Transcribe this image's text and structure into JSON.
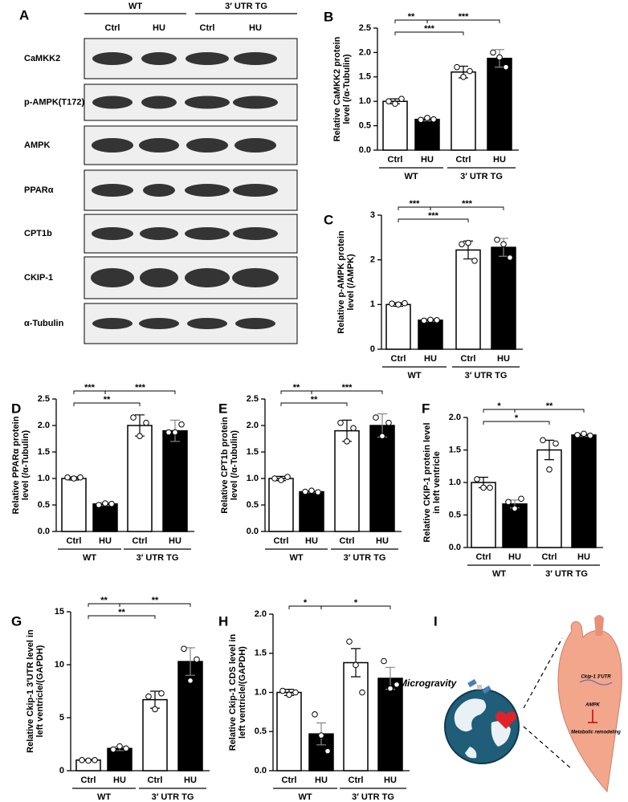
{
  "blot": {
    "label": "A",
    "groups": [
      "WT",
      "3′ UTR TG"
    ],
    "lanes": [
      "Ctrl",
      "HU",
      "Ctrl",
      "HU"
    ],
    "rows": [
      "CaMKK2",
      "p-AMPK(T172)",
      "AMPK",
      "PPARα",
      "CPT1b",
      "CKIP-1",
      "α-Tubulin"
    ]
  },
  "chart_data": [
    {
      "type": "bar",
      "label": "B",
      "ylabel": [
        "Relative CaMKK2 protein",
        "level (/α-Tubulin)"
      ],
      "categories": [
        "Ctrl",
        "HU",
        "Ctrl",
        "HU"
      ],
      "groups": [
        "WT",
        "3′ UTR TG"
      ],
      "values": [
        1.0,
        0.63,
        1.6,
        1.88
      ],
      "errors": [
        0.05,
        0.03,
        0.12,
        0.18
      ],
      "points": [
        [
          1.0,
          0.95,
          1.05
        ],
        [
          0.62,
          0.66,
          0.63
        ],
        [
          1.7,
          1.5,
          1.62
        ],
        [
          2.0,
          1.9,
          1.7
        ]
      ],
      "colors": [
        "#ffffff",
        "#000000",
        "#ffffff",
        "#000000"
      ],
      "significance": [
        {
          "label": "**",
          "bars": [
            0,
            1
          ]
        },
        {
          "label": "***",
          "bars": [
            1,
            3
          ]
        },
        {
          "label": "***",
          "bars": [
            0,
            2
          ]
        }
      ],
      "ylim": [
        0,
        2.5
      ],
      "yticks": [
        {
          "value": 0,
          "label": "0.0"
        },
        0.5,
        {
          "value": 1,
          "label": "1.0"
        },
        1.5,
        {
          "value": 2,
          "label": "2.0"
        },
        2.5
      ]
    },
    {
      "type": "bar",
      "label": "C",
      "ylabel": [
        "Relative p-AMPK protein",
        "level (/AMPK)"
      ],
      "categories": [
        "Ctrl",
        "HU",
        "Ctrl",
        "HU"
      ],
      "groups": [
        "WT",
        "3′ UTR TG"
      ],
      "values": [
        1.0,
        0.65,
        2.22,
        2.28
      ],
      "errors": [
        0.04,
        0.03,
        0.2,
        0.2
      ],
      "points": [
        [
          1.02,
          1.0,
          1.03
        ],
        [
          0.64,
          0.66,
          0.65
        ],
        [
          2.35,
          2.38,
          1.98
        ],
        [
          2.45,
          2.35,
          2.05
        ]
      ],
      "colors": [
        "#ffffff",
        "#000000",
        "#ffffff",
        "#000000"
      ],
      "significance": [
        {
          "label": "***",
          "bars": [
            0,
            1
          ]
        },
        {
          "label": "***",
          "bars": [
            1,
            3
          ]
        },
        {
          "label": "***",
          "bars": [
            0,
            2
          ]
        }
      ],
      "ylim": [
        0,
        3
      ],
      "yticks": [
        0,
        1,
        2,
        3
      ]
    },
    {
      "type": "bar",
      "label": "D",
      "ylabel": [
        "Relative PPARα protein",
        "level (/α-Tubulin)"
      ],
      "categories": [
        "Ctrl",
        "HU",
        "Ctrl",
        "HU"
      ],
      "groups": [
        "WT",
        "3′ UTR TG"
      ],
      "values": [
        1.0,
        0.52,
        2.0,
        1.9
      ],
      "errors": [
        0.03,
        0.03,
        0.2,
        0.2
      ],
      "points": [
        [
          1.02,
          1.0,
          1.02
        ],
        [
          0.5,
          0.53,
          0.52
        ],
        [
          2.15,
          1.8,
          2.05
        ],
        [
          1.87,
          1.87,
          2.02
        ]
      ],
      "colors": [
        "#ffffff",
        "#000000",
        "#ffffff",
        "#000000"
      ],
      "significance": [
        {
          "label": "***",
          "bars": [
            0,
            1
          ]
        },
        {
          "label": "***",
          "bars": [
            1,
            3
          ]
        },
        {
          "label": "**",
          "bars": [
            0,
            2
          ]
        }
      ],
      "ylim": [
        0,
        2.5
      ],
      "yticks": [
        {
          "value": 0,
          "label": "0.0"
        },
        0.5,
        {
          "value": 1,
          "label": "1.0"
        },
        1.5,
        {
          "value": 2,
          "label": "2.0"
        },
        2.5
      ]
    },
    {
      "type": "bar",
      "label": "E",
      "ylabel": [
        "Relative CPT1b protein",
        "level (/α-Tubulin)"
      ],
      "categories": [
        "Ctrl",
        "HU",
        "Ctrl",
        "HU"
      ],
      "groups": [
        "WT",
        "3′ UTR TG"
      ],
      "values": [
        1.0,
        0.75,
        1.9,
        2.0
      ],
      "errors": [
        0.04,
        0.02,
        0.2,
        0.22
      ],
      "points": [
        [
          1.0,
          0.97,
          1.03
        ],
        [
          0.75,
          0.77,
          0.74
        ],
        [
          2.05,
          1.7,
          1.95
        ],
        [
          2.15,
          1.8,
          2.05
        ]
      ],
      "colors": [
        "#ffffff",
        "#000000",
        "#ffffff",
        "#000000"
      ],
      "significance": [
        {
          "label": "**",
          "bars": [
            0,
            1
          ]
        },
        {
          "label": "***",
          "bars": [
            1,
            3
          ]
        },
        {
          "label": "**",
          "bars": [
            0,
            2
          ]
        }
      ],
      "ylim": [
        0,
        2.5
      ],
      "yticks": [
        {
          "value": 0,
          "label": "0.0"
        },
        0.5,
        {
          "value": 1,
          "label": "1.0"
        },
        1.5,
        {
          "value": 2,
          "label": "2.0"
        },
        2.5
      ]
    },
    {
      "type": "bar",
      "label": "F",
      "ylabel": [
        "Relative CKIP-1 protein level",
        "in left ventricle"
      ],
      "categories": [
        "Ctrl",
        "HU",
        "Ctrl",
        "HU"
      ],
      "groups": [
        "WT",
        "3′ UTR TG"
      ],
      "values": [
        1.0,
        0.67,
        1.5,
        1.73
      ],
      "errors": [
        0.08,
        0.06,
        0.15,
        0.02
      ],
      "points": [
        [
          1.05,
          0.92,
          0.92
        ],
        [
          0.7,
          0.6,
          0.75
        ],
        [
          1.65,
          1.2,
          1.6
        ],
        [
          1.73,
          1.75,
          1.72
        ]
      ],
      "colors": [
        "#ffffff",
        "#000000",
        "#ffffff",
        "#000000"
      ],
      "significance": [
        {
          "label": "**",
          "bars": [
            1,
            3
          ]
        },
        {
          "label": "*",
          "bars": [
            0,
            2
          ]
        },
        {
          "label": "*",
          "bars": [
            0,
            1
          ]
        }
      ],
      "ylim": [
        0,
        2
      ],
      "yticks": [
        {
          "value": 0,
          "label": "0.0"
        },
        0.5,
        {
          "value": 1,
          "label": "1.0"
        },
        1.5,
        {
          "value": 2,
          "label": "2.0"
        }
      ]
    },
    {
      "type": "bar",
      "label": "G",
      "ylabel": [
        "Relative Ckip-1 3′UTR level in",
        "left ventricle/(GAPDH)"
      ],
      "categories": [
        "Ctrl",
        "HU",
        "Ctrl",
        "HU"
      ],
      "groups": [
        "WT",
        "3′ UTR TG"
      ],
      "values": [
        1.0,
        2.1,
        6.7,
        10.3
      ],
      "errors": [
        0.05,
        0.2,
        0.8,
        1.3
      ],
      "points": [
        [
          1.0,
          0.95,
          1.0
        ],
        [
          2.0,
          2.3,
          2.1
        ],
        [
          7.0,
          5.8,
          7.3
        ],
        [
          11.5,
          8.5,
          10.5
        ]
      ],
      "colors": [
        "#ffffff",
        "#000000",
        "#ffffff",
        "#000000"
      ],
      "significance": [
        {
          "label": "**",
          "bars": [
            1,
            3
          ]
        },
        {
          "label": "**",
          "bars": [
            0,
            2
          ]
        },
        {
          "label": "**",
          "bars": [
            0,
            1
          ]
        }
      ],
      "ylim": [
        0,
        15
      ],
      "yticks": [
        0,
        5,
        10,
        15
      ]
    },
    {
      "type": "bar",
      "label": "H",
      "ylabel": [
        "Relative Ckip-1 CDS level in",
        "left ventricle/(GAPDH)"
      ],
      "categories": [
        "Ctrl",
        "HU",
        "Ctrl",
        "HU"
      ],
      "groups": [
        "WT",
        "3′ UTR TG"
      ],
      "values": [
        1.0,
        0.47,
        1.38,
        1.18
      ],
      "errors": [
        0.04,
        0.14,
        0.18,
        0.14
      ],
      "points": [
        [
          1.02,
          0.97,
          1.0
        ],
        [
          0.72,
          0.45,
          0.25
        ],
        [
          1.65,
          1.35,
          1.0
        ],
        [
          1.4,
          1.05,
          1.1
        ]
      ],
      "colors": [
        "#ffffff",
        "#000000",
        "#ffffff",
        "#000000"
      ],
      "significance": [
        {
          "label": "*",
          "bars": [
            0,
            1
          ]
        },
        {
          "label": "*",
          "bars": [
            1,
            3
          ]
        }
      ],
      "ylim": [
        0,
        2
      ],
      "yticks": [
        {
          "value": 0,
          "label": "0.0"
        },
        0.5,
        {
          "value": 1,
          "label": "1.0"
        },
        1.5,
        {
          "value": 2,
          "label": "2.0"
        }
      ]
    }
  ],
  "illustration": {
    "label": "I",
    "title": "Microgravity",
    "labels": [
      "Ckip-1 3′UTR",
      "AMPK",
      "Metabolic remodeling"
    ]
  }
}
